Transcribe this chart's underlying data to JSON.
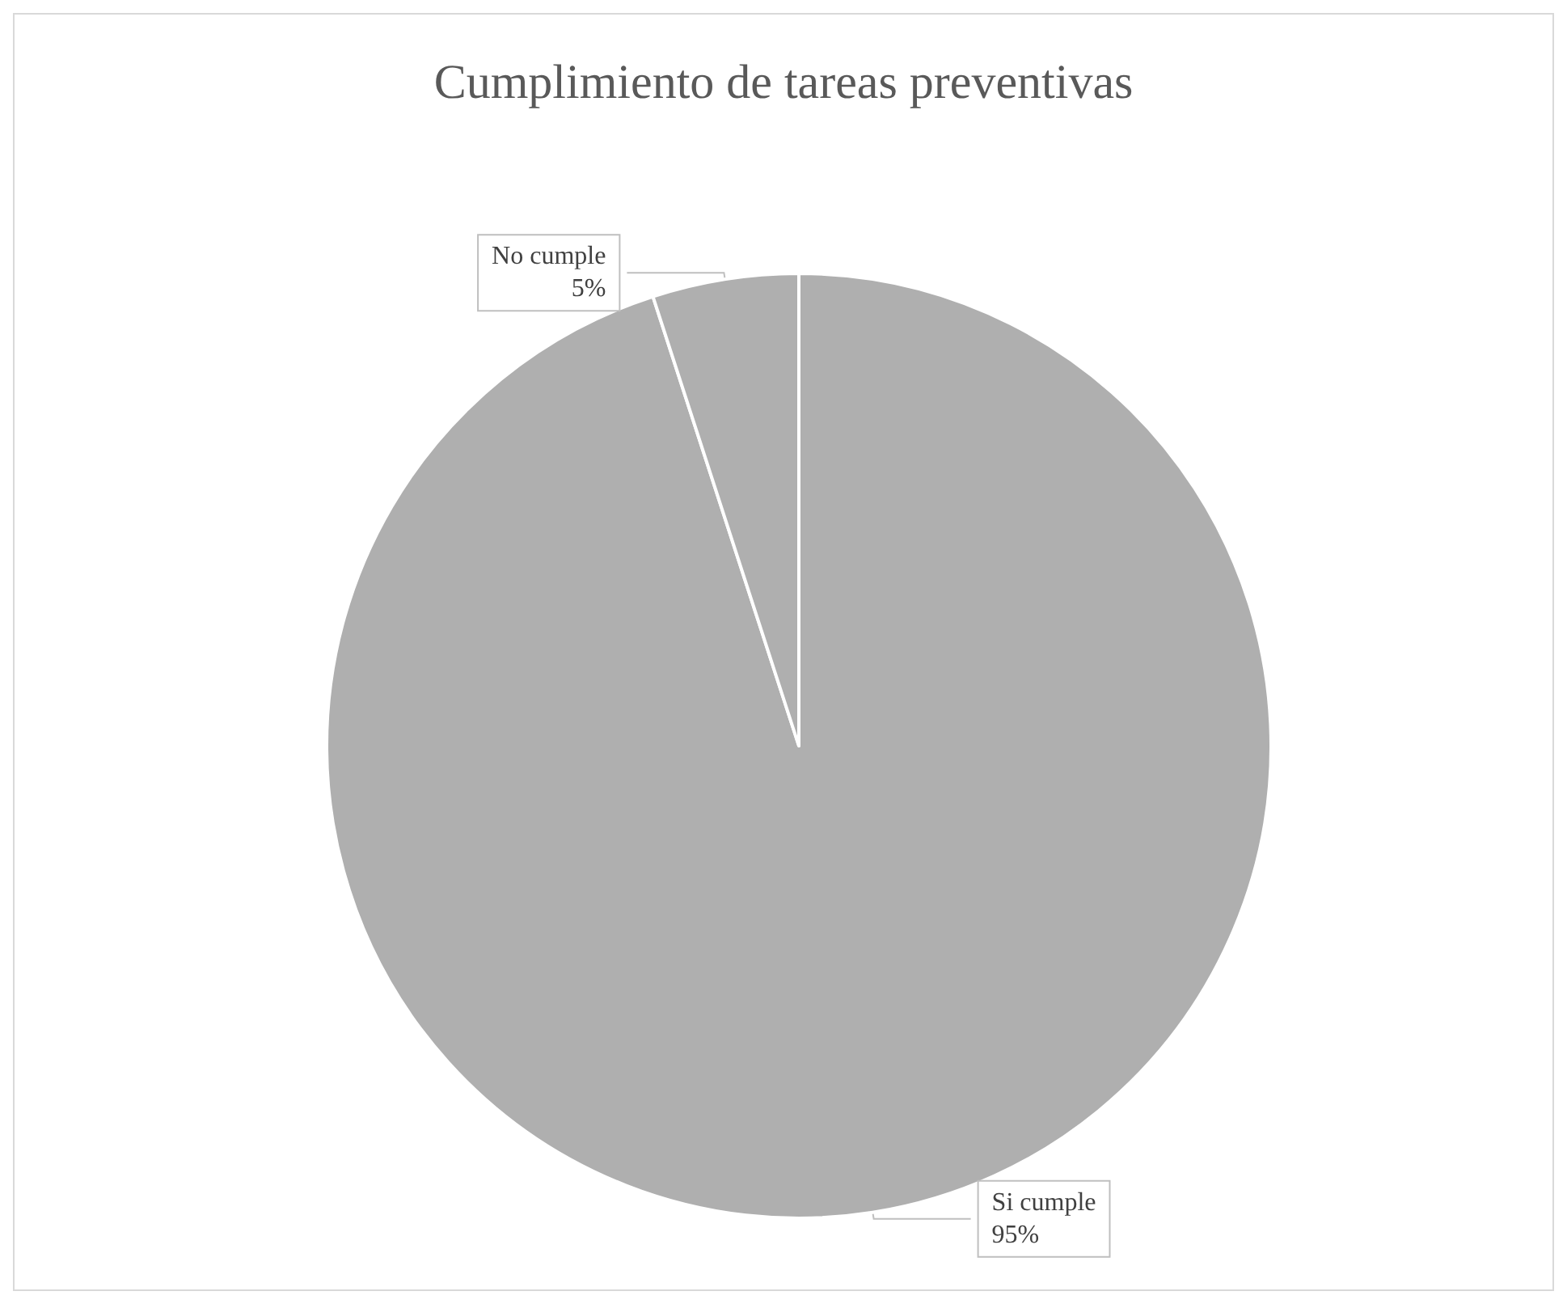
{
  "chart_data": {
    "type": "pie",
    "title": "Cumplimiento de tareas preventivas",
    "categories": [
      "Si cumple",
      "No cumple"
    ],
    "values": [
      95,
      5
    ],
    "colors": [
      "#afafaf",
      "#afafaf"
    ],
    "value_labels": [
      "95%",
      "5%"
    ],
    "legend": false
  }
}
